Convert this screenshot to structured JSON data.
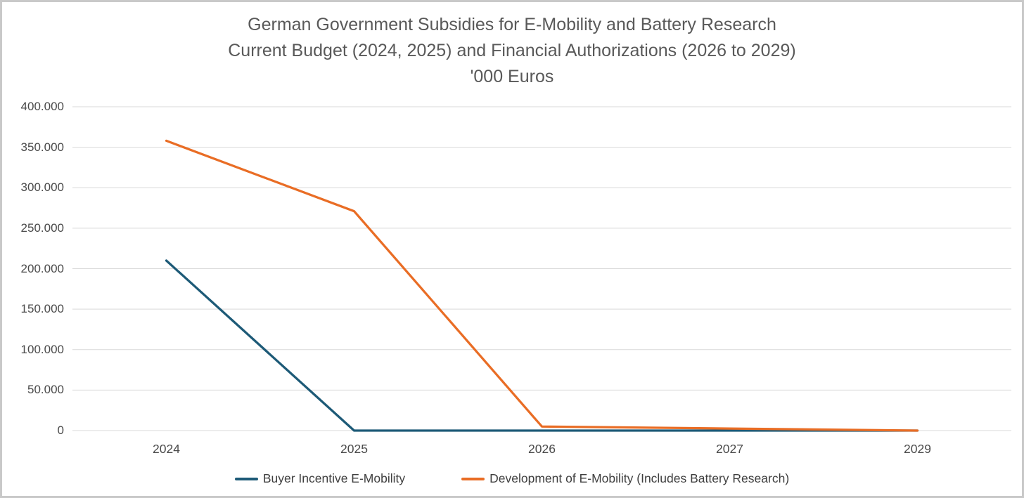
{
  "frame": {
    "border_color": "#c9c9c9",
    "background_color": "#ffffff"
  },
  "title": {
    "line1": "German Government Subsidies for E-Mobility and Battery Research",
    "line2": "Current Budget (2024, 2025) and Financial Authorizations (2026 to 2029)",
    "line3": "'000 Euros"
  },
  "chart_data": {
    "type": "line",
    "title": "German Government Subsidies for E-Mobility and Battery Research",
    "subtitle": "Current Budget (2024, 2025) and Financial Authorizations (2026 to 2029)",
    "unit_label": "'000 Euros",
    "categories": [
      "2024",
      "2025",
      "2026",
      "2027",
      "2029"
    ],
    "series": [
      {
        "name": "Buyer Incentive E-Mobility",
        "color": "#1D5A77",
        "values": [
          210000,
          0,
          0,
          0,
          0
        ]
      },
      {
        "name": "Development of E-Mobility (Includes Battery Research)",
        "color": "#E96D25",
        "values": [
          358000,
          271000,
          5000,
          2500,
          0
        ]
      }
    ],
    "y_axis": {
      "min": 0,
      "max": 400000,
      "tick_step": 50000,
      "tick_labels": [
        "0",
        "50.000",
        "100.000",
        "150.000",
        "200.000",
        "250.000",
        "300.000",
        "350.000",
        "400.000"
      ]
    },
    "x_axis": {
      "tick_labels": [
        "2024",
        "2025",
        "2026",
        "2027",
        "2029"
      ]
    },
    "gridlines": {
      "horizontal": true,
      "vertical": false,
      "color": "#d9d9d9"
    },
    "legend_position": "bottom"
  }
}
